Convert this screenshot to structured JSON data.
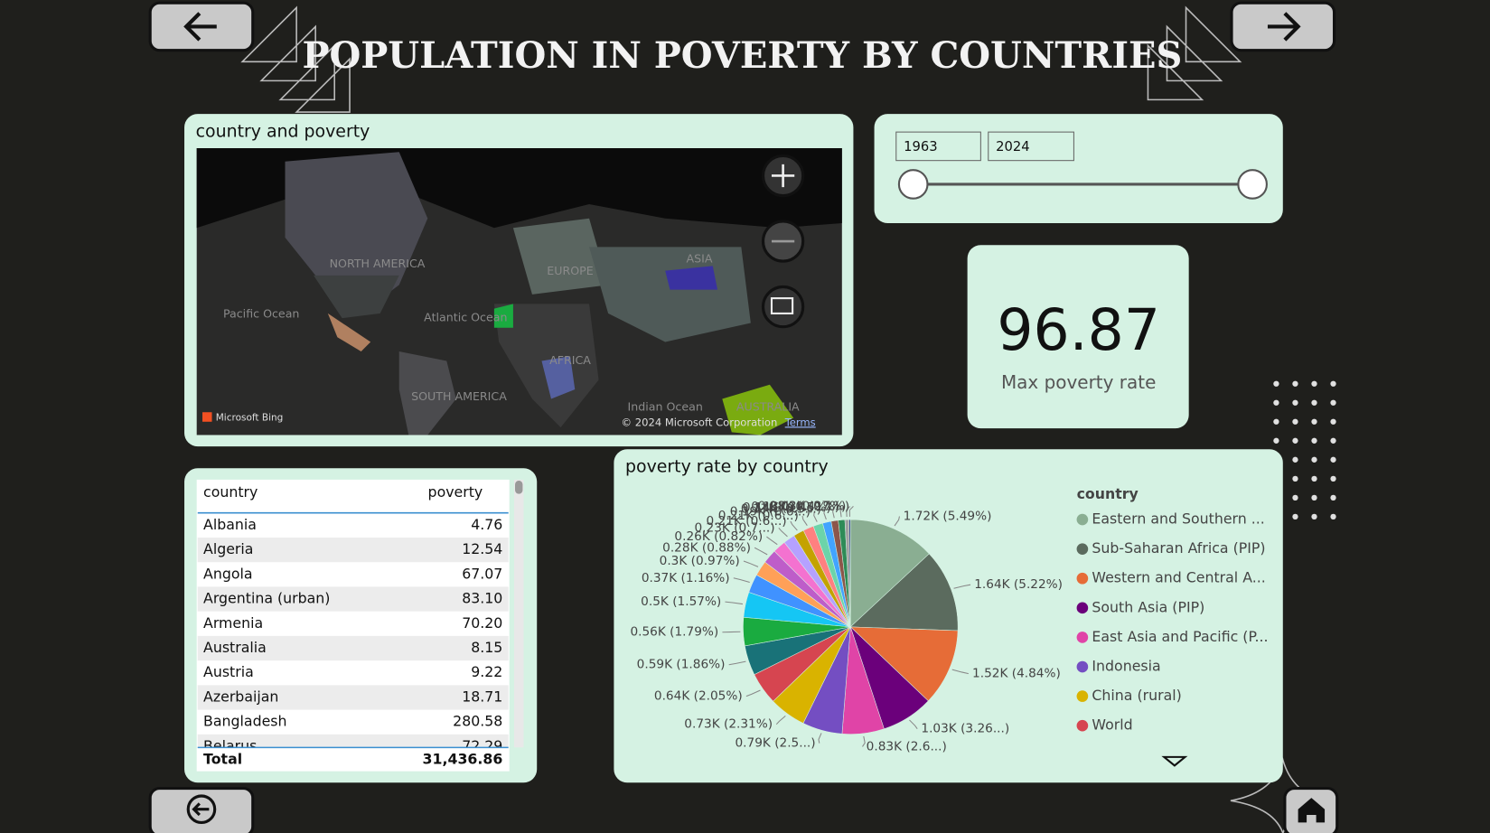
{
  "title": "POPULATION IN POVERTY BY COUNTRIES",
  "map": {
    "title": "country and poverty",
    "labels": [
      "NORTH AMERICA",
      "Pacific Ocean",
      "Atlantic Ocean",
      "EUROPE",
      "ASIA",
      "AFRICA",
      "SOUTH AMERICA",
      "Indian Ocean",
      "AUSTRALIA"
    ],
    "attribution": "Microsoft Bing",
    "copyright": "© 2024 Microsoft Corporation",
    "terms": "Terms"
  },
  "slider": {
    "start": "1963",
    "end": "2024"
  },
  "kpi": {
    "value": "96.87",
    "label": "Max poverty rate"
  },
  "table": {
    "columns": [
      "country",
      "poverty"
    ],
    "rows": [
      [
        "Albania",
        "4.76"
      ],
      [
        "Algeria",
        "12.54"
      ],
      [
        "Angola",
        "67.07"
      ],
      [
        "Argentina (urban)",
        "83.10"
      ],
      [
        "Armenia",
        "70.20"
      ],
      [
        "Australia",
        "8.15"
      ],
      [
        "Austria",
        "9.22"
      ],
      [
        "Azerbaijan",
        "18.71"
      ],
      [
        "Bangladesh",
        "280.58"
      ],
      [
        "Belarus",
        "72.29"
      ]
    ],
    "total": [
      "Total",
      "31,436.86"
    ]
  },
  "chart_data": {
    "type": "pie",
    "title": "poverty rate by country",
    "legend_title": "country",
    "categories": [
      "Eastern and Southern ...",
      "Sub-Saharan Africa (PIP)",
      "Western and Central A...",
      "South Asia (PIP)",
      "East Asia and Pacific (P...",
      "Indonesia",
      "China (rural)",
      "World",
      null,
      null,
      null,
      null,
      null,
      null,
      null,
      null,
      null,
      null,
      null,
      null,
      null,
      null,
      null,
      null
    ],
    "values": [
      1720,
      1640,
      1520,
      1030,
      830,
      790,
      730,
      640,
      590,
      560,
      500,
      370,
      300,
      280,
      260,
      230,
      210,
      210,
      190,
      170,
      140,
      130,
      80,
      30
    ],
    "value_labels": [
      "1.72K (5.49%)",
      "1.64K (5.22%)",
      "1.52K (4.84%)",
      "1.03K (3.26...)",
      "0.83K (2.6...)",
      "0.79K (2.5...)",
      "0.73K (2.31%)",
      "0.64K (2.05%)",
      "0.59K (1.86%)",
      "0.56K (1.79%)",
      "0.5K (1.57%)",
      "0.37K (1.16%)",
      "0.3K (0.97%)",
      "0.28K (0.88%)",
      "0.26K (0.82%)",
      "0.23K (0.7...)",
      "0.21K (0.6...)",
      "0.21K (0.6...)",
      "0.19K (0.6...)",
      "0.17K (0.5...)",
      "0.14K (0.45%)",
      "0.13K (0.41%)",
      "0.08K (0.27%)",
      "0.03K (0.1%)"
    ],
    "colors": [
      "#8aae92",
      "#5b6b5e",
      "#e66c37",
      "#6b007b",
      "#e044a7",
      "#744ec2",
      "#d9b300",
      "#d64550",
      "#197278",
      "#1aab40",
      "#15c6f4",
      "#4092ff",
      "#ffa058",
      "#be5dc9",
      "#f472d0",
      "#b5a1ff",
      "#c4a200",
      "#ff8080",
      "#6cd4a9",
      "#41a4ff",
      "#8c564b",
      "#2e8b57",
      "#a0a0a0",
      "#3a4a8c"
    ]
  }
}
